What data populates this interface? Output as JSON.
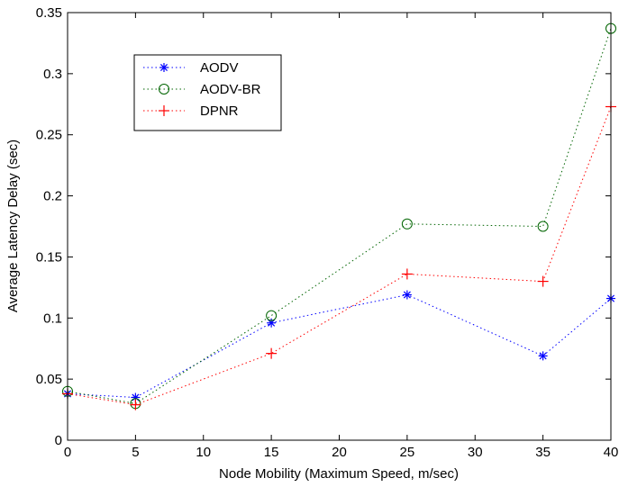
{
  "chart_data": {
    "type": "line",
    "title": "",
    "xlabel": "Node Mobility (Maximum Speed, m/sec)",
    "ylabel": "Average Latency Delay (sec)",
    "xlim": [
      0,
      40
    ],
    "ylim": [
      0,
      0.35
    ],
    "xticks": [
      {
        "v": 0,
        "label": "0"
      },
      {
        "v": 5,
        "label": "5"
      },
      {
        "v": 10,
        "label": "10"
      },
      {
        "v": 15,
        "label": "15"
      },
      {
        "v": 20,
        "label": "20"
      },
      {
        "v": 25,
        "label": "25"
      },
      {
        "v": 30,
        "label": "30"
      },
      {
        "v": 35,
        "label": "35"
      },
      {
        "v": 40,
        "label": "40"
      }
    ],
    "yticks": [
      {
        "v": 0,
        "label": "0"
      },
      {
        "v": 0.05,
        "label": "0.05"
      },
      {
        "v": 0.1,
        "label": "0.1"
      },
      {
        "v": 0.15,
        "label": "0.15"
      },
      {
        "v": 0.2,
        "label": "0.2"
      },
      {
        "v": 0.25,
        "label": "0.25"
      },
      {
        "v": 0.3,
        "label": "0.3"
      },
      {
        "v": 0.35,
        "label": "0.35"
      }
    ],
    "grid": false,
    "legend_position": "top-left",
    "x": [
      0,
      5,
      15,
      25,
      35,
      40
    ],
    "series": [
      {
        "name": "AODV",
        "values": [
          0.038,
          0.035,
          0.096,
          0.119,
          0.069,
          0.116
        ],
        "color": "#0000ff",
        "marker": "asterisk",
        "line_style": "dotted"
      },
      {
        "name": "AODV-BR",
        "values": [
          0.04,
          0.03,
          0.102,
          0.177,
          0.175,
          0.337
        ],
        "color": "#006400",
        "marker": "circle",
        "line_style": "dotted"
      },
      {
        "name": "DPNR",
        "values": [
          0.038,
          0.029,
          0.071,
          0.136,
          0.13,
          0.273
        ],
        "color": "#ff0000",
        "marker": "plus",
        "line_style": "dotted"
      }
    ]
  }
}
